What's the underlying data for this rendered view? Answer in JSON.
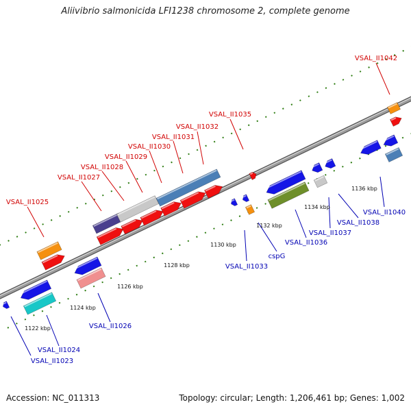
{
  "title": "Aliivibrio salmonicida LFI1238 chromosome 2, complete genome",
  "footer": {
    "accession": "Accession: NC_011313",
    "summary": "Topology: circular; Length: 1,206,461 bp; Genes: 1,002"
  },
  "colors": {
    "forward_label": "#d10000",
    "reverse_label": "#0000b3",
    "backbone": "#777777",
    "ticks": "#2e7d12"
  },
  "ticks": [
    "1122 kbp",
    "1124 kbp",
    "1126 kbp",
    "1128 kbp",
    "1130 kbp",
    "1132 kbp",
    "1134 kbp",
    "1136 kbp"
  ],
  "genes_forward": [
    {
      "label": "VSAL_II1025"
    },
    {
      "label": "VSAL_II1027"
    },
    {
      "label": "VSAL_II1028"
    },
    {
      "label": "VSAL_II1029"
    },
    {
      "label": "VSAL_II1030"
    },
    {
      "label": "VSAL_II1031"
    },
    {
      "label": "VSAL_II1032"
    },
    {
      "label": "VSAL_II1035"
    },
    {
      "label": "VSAL_II1042"
    }
  ],
  "genes_reverse": [
    {
      "label": "VSAL_II1023"
    },
    {
      "label": "VSAL_II1024"
    },
    {
      "label": "VSAL_II1026"
    },
    {
      "label": "VSAL_II1033"
    },
    {
      "label": "cspG"
    },
    {
      "label": "VSAL_II1036"
    },
    {
      "label": "VSAL_II1037"
    },
    {
      "label": "VSAL_II1038"
    },
    {
      "label": "VSAL_II1040"
    }
  ]
}
